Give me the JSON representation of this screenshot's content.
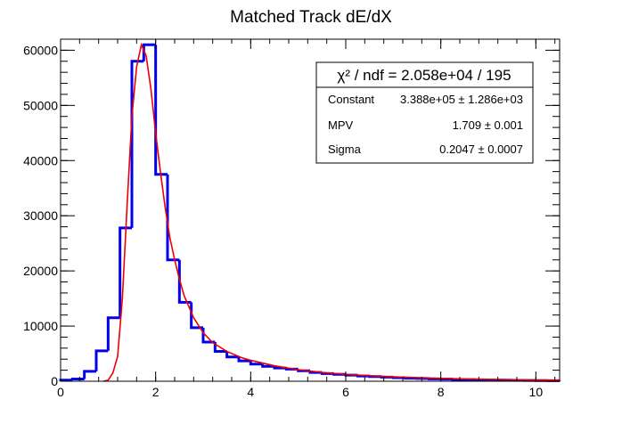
{
  "chart_data": {
    "type": "bar",
    "title": "Matched Track dE/dX",
    "xlabel": "",
    "ylabel": "",
    "xlim": [
      0,
      10.5
    ],
    "ylim": [
      0,
      62000
    ],
    "x_ticks": [
      "0",
      "2",
      "4",
      "6",
      "8",
      "10"
    ],
    "y_ticks": [
      "0",
      "10000",
      "20000",
      "30000",
      "40000",
      "50000",
      "60000"
    ],
    "grid": false,
    "series": [
      {
        "kind": "histogram",
        "color": "#0000ee",
        "bin_edges": [
          0,
          0.25,
          0.5,
          0.75,
          1.0,
          1.25,
          1.5,
          1.75,
          2.0,
          2.25,
          2.5,
          2.75,
          3.0,
          3.25,
          3.5,
          3.75,
          4.0,
          4.25,
          4.5,
          4.75,
          5.0,
          5.25,
          5.5,
          5.75,
          6.0,
          6.25,
          6.5,
          6.75,
          7.0,
          7.25,
          7.5,
          7.75,
          8.0,
          8.25,
          8.5,
          8.75,
          9.0,
          9.25,
          9.5,
          9.75,
          10.0,
          10.25,
          10.5
        ],
        "counts": [
          200,
          400,
          1800,
          5500,
          11500,
          27800,
          58000,
          61000,
          37500,
          22000,
          14300,
          9700,
          7100,
          5400,
          4400,
          3700,
          3100,
          2700,
          2400,
          2200,
          1900,
          1600,
          1400,
          1250,
          1100,
          950,
          850,
          750,
          650,
          550,
          500,
          420,
          380,
          330,
          280,
          240,
          210,
          180,
          160,
          140,
          120,
          100
        ]
      },
      {
        "kind": "fit",
        "color": "#ee0000",
        "x": [
          0.9,
          1.0,
          1.1,
          1.2,
          1.3,
          1.4,
          1.5,
          1.6,
          1.7,
          1.8,
          1.9,
          2.0,
          2.1,
          2.2,
          2.3,
          2.4,
          2.5,
          2.6,
          2.8,
          3.0,
          3.2,
          3.5,
          3.8,
          4.0,
          4.5,
          5.0,
          5.5,
          6.0,
          6.5,
          7.0,
          7.5,
          8.0,
          8.5,
          9.0,
          9.5,
          10.0,
          10.5
        ],
        "y": [
          0,
          200,
          1500,
          4500,
          15000,
          32000,
          48000,
          57000,
          61000,
          59000,
          53000,
          45000,
          38000,
          31500,
          26000,
          22000,
          18500,
          15500,
          11500,
          8800,
          7000,
          5400,
          4300,
          3800,
          2800,
          2100,
          1600,
          1250,
          1000,
          800,
          650,
          520,
          420,
          350,
          290,
          240,
          200
        ]
      }
    ]
  },
  "stats": {
    "chi2_label": "χ² / ndf = 2.058e+04 / 195",
    "rows": [
      {
        "name": "Constant",
        "value": "3.388e+05 ± 1.286e+03"
      },
      {
        "name": "MPV",
        "value": "1.709 ± 0.001"
      },
      {
        "name": "Sigma",
        "value": "0.2047 ± 0.0007"
      }
    ]
  }
}
